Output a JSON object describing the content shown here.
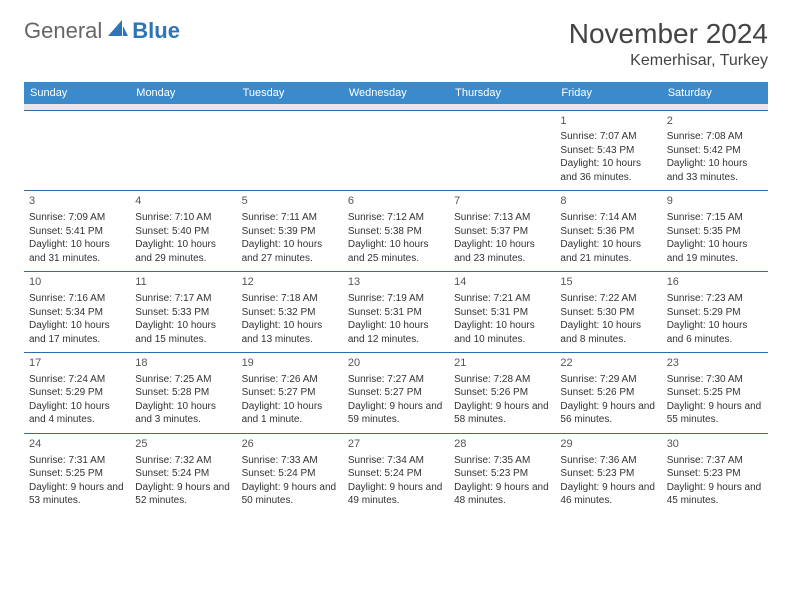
{
  "logo": {
    "text1": "General",
    "text2": "Blue"
  },
  "title": "November 2024",
  "location": "Kemerhisar, Turkey",
  "header_bg": "#3b8bcc",
  "header_fg": "#ffffff",
  "row_border": "#2e6da4",
  "spacer_bg": "#e6e6e6",
  "dow": [
    "Sunday",
    "Monday",
    "Tuesday",
    "Wednesday",
    "Thursday",
    "Friday",
    "Saturday"
  ],
  "weeks": [
    [
      null,
      null,
      null,
      null,
      null,
      {
        "n": "1",
        "sr": "Sunrise: 7:07 AM",
        "ss": "Sunset: 5:43 PM",
        "dl": "Daylight: 10 hours and 36 minutes."
      },
      {
        "n": "2",
        "sr": "Sunrise: 7:08 AM",
        "ss": "Sunset: 5:42 PM",
        "dl": "Daylight: 10 hours and 33 minutes."
      }
    ],
    [
      {
        "n": "3",
        "sr": "Sunrise: 7:09 AM",
        "ss": "Sunset: 5:41 PM",
        "dl": "Daylight: 10 hours and 31 minutes."
      },
      {
        "n": "4",
        "sr": "Sunrise: 7:10 AM",
        "ss": "Sunset: 5:40 PM",
        "dl": "Daylight: 10 hours and 29 minutes."
      },
      {
        "n": "5",
        "sr": "Sunrise: 7:11 AM",
        "ss": "Sunset: 5:39 PM",
        "dl": "Daylight: 10 hours and 27 minutes."
      },
      {
        "n": "6",
        "sr": "Sunrise: 7:12 AM",
        "ss": "Sunset: 5:38 PM",
        "dl": "Daylight: 10 hours and 25 minutes."
      },
      {
        "n": "7",
        "sr": "Sunrise: 7:13 AM",
        "ss": "Sunset: 5:37 PM",
        "dl": "Daylight: 10 hours and 23 minutes."
      },
      {
        "n": "8",
        "sr": "Sunrise: 7:14 AM",
        "ss": "Sunset: 5:36 PM",
        "dl": "Daylight: 10 hours and 21 minutes."
      },
      {
        "n": "9",
        "sr": "Sunrise: 7:15 AM",
        "ss": "Sunset: 5:35 PM",
        "dl": "Daylight: 10 hours and 19 minutes."
      }
    ],
    [
      {
        "n": "10",
        "sr": "Sunrise: 7:16 AM",
        "ss": "Sunset: 5:34 PM",
        "dl": "Daylight: 10 hours and 17 minutes."
      },
      {
        "n": "11",
        "sr": "Sunrise: 7:17 AM",
        "ss": "Sunset: 5:33 PM",
        "dl": "Daylight: 10 hours and 15 minutes."
      },
      {
        "n": "12",
        "sr": "Sunrise: 7:18 AM",
        "ss": "Sunset: 5:32 PM",
        "dl": "Daylight: 10 hours and 13 minutes."
      },
      {
        "n": "13",
        "sr": "Sunrise: 7:19 AM",
        "ss": "Sunset: 5:31 PM",
        "dl": "Daylight: 10 hours and 12 minutes."
      },
      {
        "n": "14",
        "sr": "Sunrise: 7:21 AM",
        "ss": "Sunset: 5:31 PM",
        "dl": "Daylight: 10 hours and 10 minutes."
      },
      {
        "n": "15",
        "sr": "Sunrise: 7:22 AM",
        "ss": "Sunset: 5:30 PM",
        "dl": "Daylight: 10 hours and 8 minutes."
      },
      {
        "n": "16",
        "sr": "Sunrise: 7:23 AM",
        "ss": "Sunset: 5:29 PM",
        "dl": "Daylight: 10 hours and 6 minutes."
      }
    ],
    [
      {
        "n": "17",
        "sr": "Sunrise: 7:24 AM",
        "ss": "Sunset: 5:29 PM",
        "dl": "Daylight: 10 hours and 4 minutes."
      },
      {
        "n": "18",
        "sr": "Sunrise: 7:25 AM",
        "ss": "Sunset: 5:28 PM",
        "dl": "Daylight: 10 hours and 3 minutes."
      },
      {
        "n": "19",
        "sr": "Sunrise: 7:26 AM",
        "ss": "Sunset: 5:27 PM",
        "dl": "Daylight: 10 hours and 1 minute."
      },
      {
        "n": "20",
        "sr": "Sunrise: 7:27 AM",
        "ss": "Sunset: 5:27 PM",
        "dl": "Daylight: 9 hours and 59 minutes."
      },
      {
        "n": "21",
        "sr": "Sunrise: 7:28 AM",
        "ss": "Sunset: 5:26 PM",
        "dl": "Daylight: 9 hours and 58 minutes."
      },
      {
        "n": "22",
        "sr": "Sunrise: 7:29 AM",
        "ss": "Sunset: 5:26 PM",
        "dl": "Daylight: 9 hours and 56 minutes."
      },
      {
        "n": "23",
        "sr": "Sunrise: 7:30 AM",
        "ss": "Sunset: 5:25 PM",
        "dl": "Daylight: 9 hours and 55 minutes."
      }
    ],
    [
      {
        "n": "24",
        "sr": "Sunrise: 7:31 AM",
        "ss": "Sunset: 5:25 PM",
        "dl": "Daylight: 9 hours and 53 minutes."
      },
      {
        "n": "25",
        "sr": "Sunrise: 7:32 AM",
        "ss": "Sunset: 5:24 PM",
        "dl": "Daylight: 9 hours and 52 minutes."
      },
      {
        "n": "26",
        "sr": "Sunrise: 7:33 AM",
        "ss": "Sunset: 5:24 PM",
        "dl": "Daylight: 9 hours and 50 minutes."
      },
      {
        "n": "27",
        "sr": "Sunrise: 7:34 AM",
        "ss": "Sunset: 5:24 PM",
        "dl": "Daylight: 9 hours and 49 minutes."
      },
      {
        "n": "28",
        "sr": "Sunrise: 7:35 AM",
        "ss": "Sunset: 5:23 PM",
        "dl": "Daylight: 9 hours and 48 minutes."
      },
      {
        "n": "29",
        "sr": "Sunrise: 7:36 AM",
        "ss": "Sunset: 5:23 PM",
        "dl": "Daylight: 9 hours and 46 minutes."
      },
      {
        "n": "30",
        "sr": "Sunrise: 7:37 AM",
        "ss": "Sunset: 5:23 PM",
        "dl": "Daylight: 9 hours and 45 minutes."
      }
    ]
  ]
}
